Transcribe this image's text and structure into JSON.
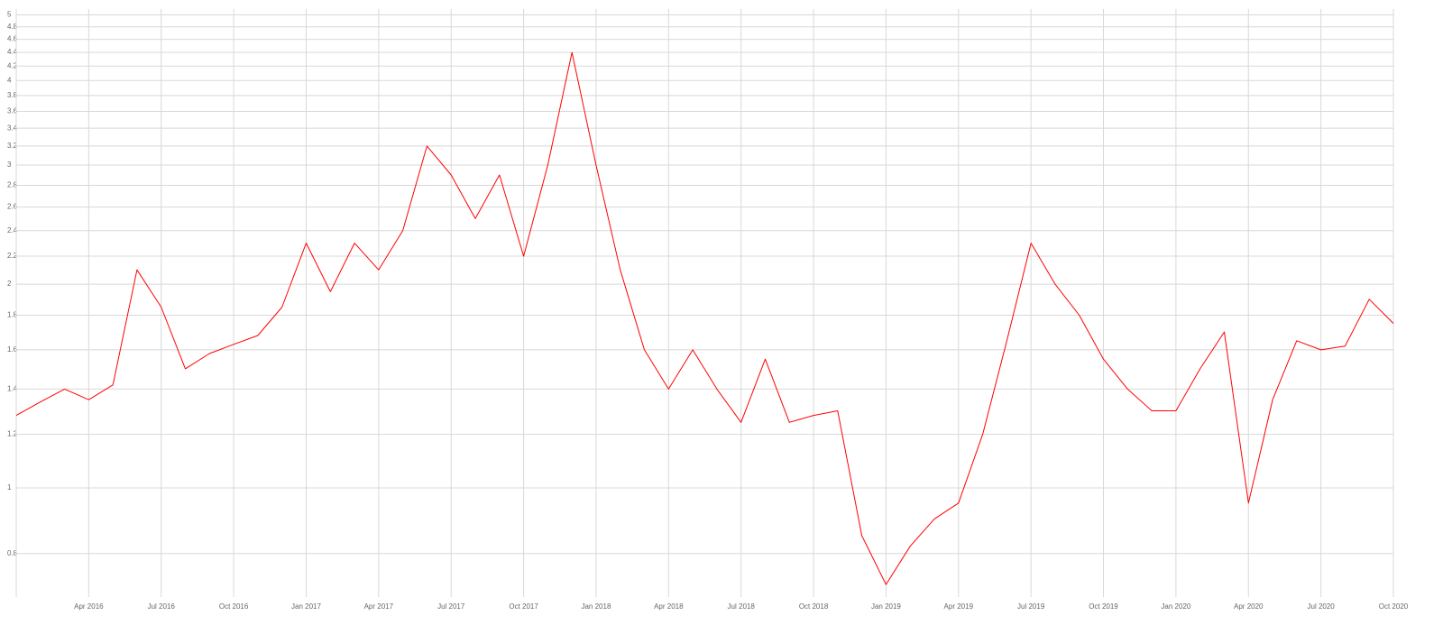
{
  "chart_data": {
    "type": "line",
    "log_y": true,
    "grid": true,
    "x": [
      "2016-01",
      "2016-02",
      "2016-03",
      "2016-04",
      "2016-05",
      "2016-06",
      "2016-07",
      "2016-08",
      "2016-09",
      "2016-10",
      "2016-11",
      "2016-12",
      "2017-01",
      "2017-02",
      "2017-03",
      "2017-04",
      "2017-05",
      "2017-06",
      "2017-07",
      "2017-08",
      "2017-09",
      "2017-10",
      "2017-11",
      "2017-12",
      "2018-01",
      "2018-02",
      "2018-03",
      "2018-04",
      "2018-05",
      "2018-06",
      "2018-07",
      "2018-08",
      "2018-09",
      "2018-10",
      "2018-11",
      "2018-12",
      "2019-01",
      "2019-02",
      "2019-03",
      "2019-04",
      "2019-05",
      "2019-06",
      "2019-07",
      "2019-08",
      "2019-09",
      "2019-10",
      "2019-11",
      "2019-12",
      "2020-01",
      "2020-02",
      "2020-03",
      "2020-04",
      "2020-05",
      "2020-06",
      "2020-07",
      "2020-08",
      "2020-09",
      "2020-10"
    ],
    "series": [
      {
        "color": "#ff0000",
        "values": [
          1.28,
          1.34,
          1.4,
          1.35,
          1.42,
          2.1,
          1.85,
          1.5,
          1.58,
          1.63,
          1.68,
          1.85,
          2.3,
          1.95,
          2.3,
          2.1,
          2.4,
          3.2,
          2.9,
          2.5,
          2.9,
          2.2,
          3.0,
          4.4,
          3.0,
          2.1,
          1.6,
          1.4,
          1.6,
          1.4,
          1.25,
          1.55,
          1.25,
          1.28,
          1.3,
          0.85,
          0.72,
          0.82,
          0.9,
          0.95,
          1.2,
          1.65,
          2.3,
          2.0,
          1.8,
          1.55,
          1.4,
          1.3,
          1.3,
          1.5,
          1.7,
          0.95,
          1.35,
          1.65,
          1.6,
          1.62,
          1.9,
          1.75
        ]
      }
    ],
    "xlim": [
      "2016-01",
      "2020-10"
    ],
    "xticks": [
      {
        "value": "2016-04",
        "label": "Apr 2016"
      },
      {
        "value": "2016-07",
        "label": "Jul 2016"
      },
      {
        "value": "2016-10",
        "label": "Oct 2016"
      },
      {
        "value": "2017-01",
        "label": "Jan 2017"
      },
      {
        "value": "2017-04",
        "label": "Apr 2017"
      },
      {
        "value": "2017-07",
        "label": "Jul 2017"
      },
      {
        "value": "2017-10",
        "label": "Oct 2017"
      },
      {
        "value": "2018-01",
        "label": "Jan 2018"
      },
      {
        "value": "2018-04",
        "label": "Apr 2018"
      },
      {
        "value": "2018-07",
        "label": "Jul 2018"
      },
      {
        "value": "2018-10",
        "label": "Oct 2018"
      },
      {
        "value": "2019-01",
        "label": "Jan 2019"
      },
      {
        "value": "2019-04",
        "label": "Apr 2019"
      },
      {
        "value": "2019-07",
        "label": "Jul 2019"
      },
      {
        "value": "2019-10",
        "label": "Oct 2019"
      },
      {
        "value": "2020-01",
        "label": "Jan 2020"
      },
      {
        "value": "2020-04",
        "label": "Apr 2020"
      },
      {
        "value": "2020-07",
        "label": "Jul 2020"
      },
      {
        "value": "2020-10",
        "label": "Oct 2020"
      }
    ],
    "ylim": [
      0.69,
      5.1
    ],
    "yticks": [
      0.8,
      1,
      1.2,
      1.4,
      1.6,
      1.8,
      2,
      2.2,
      2.4,
      2.6,
      2.8,
      3,
      3.2,
      3.4,
      3.6,
      3.8,
      4,
      4.2,
      4.4,
      4.6,
      4.8,
      5
    ]
  }
}
